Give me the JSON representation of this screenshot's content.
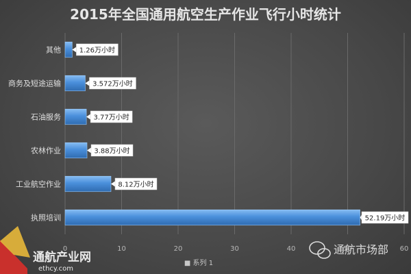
{
  "chart_data": {
    "type": "bar",
    "orientation": "horizontal",
    "title": "2015年全国通用航空生产作业飞行小时统计",
    "categories": [
      "其他",
      "商务及短途运输",
      "石油服务",
      "农林作业",
      "工业航空作业",
      "执照培训"
    ],
    "series": [
      {
        "name": "系列1",
        "values": [
          1.26,
          3.572,
          3.77,
          3.88,
          8.12,
          52.19
        ],
        "data_labels": [
          "1.26万小时",
          "3.572万小时",
          "3.77万小时",
          "3.88万小时",
          "8.12万小时",
          "52.19万小时"
        ],
        "color": "#4a8fdb"
      }
    ],
    "xlim": [
      0,
      60
    ],
    "x_ticks": [
      0,
      10,
      20,
      30,
      40,
      50,
      60
    ],
    "legend_label": "■ 系列 1",
    "legend_position": "bottom",
    "grid": true
  },
  "watermark": {
    "left_main": "通航产业网",
    "left_sub": "ethcy.com",
    "right": "通航市场部"
  },
  "colors": {
    "bar": "#4a8fdb",
    "bar_light": "#7ab2ee",
    "label_bg": "#ffffff",
    "grid": "#6a6a6a"
  }
}
